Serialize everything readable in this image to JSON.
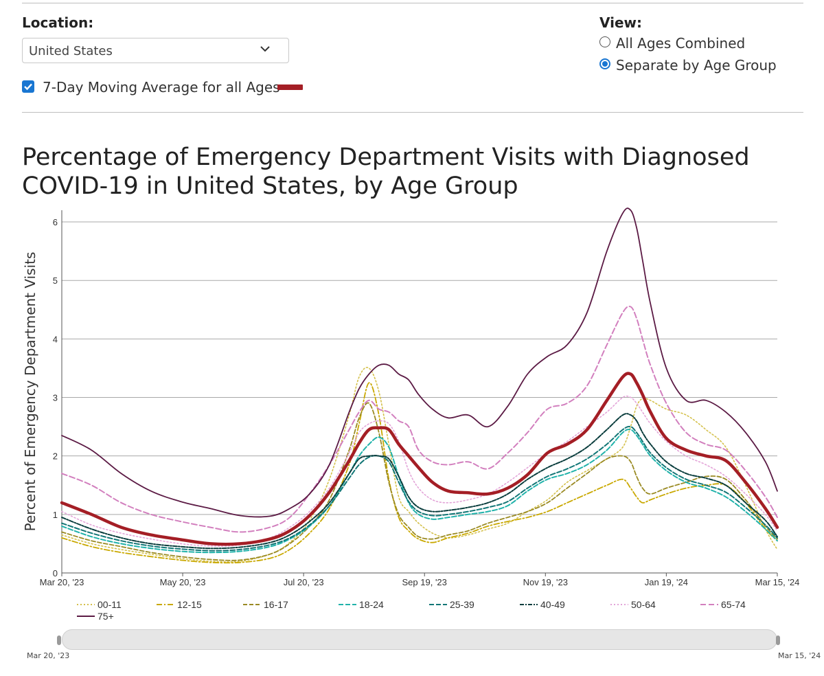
{
  "location": {
    "label": "Location:",
    "selected": "United States"
  },
  "moving_average": {
    "label": "7-Day Moving Average for all Ages",
    "checked": true,
    "color": "#a41e25"
  },
  "view": {
    "label": "View:",
    "options": [
      {
        "label": "All Ages Combined",
        "selected": false
      },
      {
        "label": "Separate by Age Group",
        "selected": true
      }
    ]
  },
  "chart_title_line1": "Percentage of Emergency Department Visits with Diagnosed",
  "chart_title_line2": "COVID-19 in United States, by Age Group",
  "chart_data": {
    "type": "line",
    "title": "Percentage of Emergency Department Visits with Diagnosed COVID-19 in United States, by Age Group",
    "xlabel": "",
    "ylabel": "Percent of Emergency Department Visits",
    "ylim": [
      0,
      6.2
    ],
    "yticks": [
      0,
      1,
      2,
      3,
      4,
      5,
      6
    ],
    "xlim_days": [
      0,
      361
    ],
    "xticks": [
      {
        "label": "Mar 20, '23",
        "day": 0
      },
      {
        "label": "May 20, '23",
        "day": 61
      },
      {
        "label": "Jul 20, '23",
        "day": 122
      },
      {
        "label": "Sep 19, '23",
        "day": 183
      },
      {
        "label": "Nov 19, '23",
        "day": 244
      },
      {
        "label": "Jan 19, '24",
        "day": 305
      },
      {
        "label": "Mar 15, '24",
        "day": 361
      }
    ],
    "x": [
      0,
      15,
      30,
      45,
      60,
      75,
      90,
      105,
      115,
      125,
      135,
      145,
      150,
      155,
      160,
      165,
      170,
      175,
      180,
      187,
      195,
      205,
      215,
      225,
      235,
      245,
      255,
      265,
      275,
      283,
      287,
      290,
      293,
      297,
      305,
      315,
      325,
      335,
      345,
      355,
      361
    ],
    "series": [
      {
        "name": "00-11",
        "color": "#d4c04a",
        "dash": "2,3",
        "width": 1.6,
        "values": [
          0.65,
          0.5,
          0.4,
          0.32,
          0.25,
          0.2,
          0.2,
          0.32,
          0.52,
          0.9,
          1.6,
          2.7,
          3.35,
          3.5,
          3.1,
          2.2,
          1.3,
          1.05,
          0.85,
          0.68,
          0.6,
          0.65,
          0.75,
          0.85,
          1.05,
          1.25,
          1.55,
          1.75,
          1.95,
          2.15,
          2.5,
          2.85,
          2.98,
          2.95,
          2.8,
          2.7,
          2.45,
          2.15,
          1.5,
          0.75,
          0.4
        ]
      },
      {
        "name": "12-15",
        "color": "#c9a800",
        "dash": "8,3,2,3",
        "width": 1.8,
        "values": [
          0.6,
          0.45,
          0.35,
          0.28,
          0.22,
          0.18,
          0.18,
          0.25,
          0.4,
          0.68,
          1.1,
          1.85,
          2.55,
          3.25,
          2.7,
          1.6,
          0.95,
          0.72,
          0.58,
          0.52,
          0.6,
          0.68,
          0.8,
          0.88,
          0.95,
          1.05,
          1.2,
          1.35,
          1.5,
          1.6,
          1.45,
          1.3,
          1.2,
          1.25,
          1.35,
          1.45,
          1.5,
          1.5,
          1.2,
          0.75,
          0.55
        ]
      },
      {
        "name": "16-17",
        "color": "#9a8a23",
        "dash": "6,3",
        "width": 1.8,
        "values": [
          0.7,
          0.55,
          0.45,
          0.35,
          0.28,
          0.23,
          0.22,
          0.32,
          0.5,
          0.8,
          1.25,
          2.1,
          2.65,
          2.9,
          2.4,
          1.55,
          1.0,
          0.78,
          0.62,
          0.58,
          0.65,
          0.72,
          0.85,
          0.95,
          1.05,
          1.2,
          1.45,
          1.7,
          1.95,
          2.0,
          1.9,
          1.65,
          1.45,
          1.35,
          1.45,
          1.55,
          1.65,
          1.6,
          1.25,
          0.8,
          0.58
        ]
      },
      {
        "name": "18-24",
        "color": "#20b2aa",
        "dash": "7,3",
        "width": 2.0,
        "values": [
          0.8,
          0.62,
          0.5,
          0.42,
          0.37,
          0.35,
          0.37,
          0.45,
          0.58,
          0.8,
          1.15,
          1.7,
          2.0,
          2.2,
          2.32,
          2.15,
          1.65,
          1.2,
          1.0,
          0.92,
          0.95,
          1.0,
          1.05,
          1.15,
          1.4,
          1.6,
          1.7,
          1.85,
          2.1,
          2.4,
          2.45,
          2.35,
          2.2,
          2.0,
          1.75,
          1.55,
          1.45,
          1.3,
          1.05,
          0.75,
          0.55
        ]
      },
      {
        "name": "25-39",
        "color": "#127676",
        "dash": "7,3",
        "width": 2.0,
        "values": [
          0.85,
          0.68,
          0.55,
          0.46,
          0.41,
          0.38,
          0.4,
          0.48,
          0.6,
          0.82,
          1.15,
          1.62,
          1.85,
          1.98,
          2.0,
          1.9,
          1.55,
          1.22,
          1.05,
          0.98,
          1.0,
          1.05,
          1.12,
          1.22,
          1.45,
          1.65,
          1.78,
          1.95,
          2.2,
          2.45,
          2.5,
          2.4,
          2.25,
          2.05,
          1.8,
          1.6,
          1.5,
          1.38,
          1.12,
          0.82,
          0.6
        ]
      },
      {
        "name": "40-49",
        "color": "#0a3d3d",
        "dash": "6,2,2,2",
        "width": 2.0,
        "values": [
          0.95,
          0.75,
          0.6,
          0.5,
          0.45,
          0.42,
          0.44,
          0.52,
          0.65,
          0.88,
          1.2,
          1.7,
          1.95,
          2.0,
          2.0,
          1.95,
          1.65,
          1.3,
          1.12,
          1.05,
          1.07,
          1.12,
          1.2,
          1.35,
          1.6,
          1.8,
          1.95,
          2.15,
          2.45,
          2.7,
          2.7,
          2.6,
          2.4,
          2.2,
          1.9,
          1.7,
          1.62,
          1.5,
          1.2,
          0.9,
          0.62
        ]
      },
      {
        "name": "50-64",
        "color": "#e3a4d8",
        "dash": "2,3",
        "width": 1.6,
        "values": [
          1.05,
          0.82,
          0.68,
          0.58,
          0.5,
          0.46,
          0.48,
          0.6,
          0.78,
          1.05,
          1.45,
          2.05,
          2.4,
          2.55,
          2.6,
          2.55,
          2.25,
          1.75,
          1.45,
          1.25,
          1.2,
          1.25,
          1.35,
          1.55,
          1.8,
          2.05,
          2.25,
          2.5,
          2.75,
          3.0,
          3.0,
          2.9,
          2.75,
          2.55,
          2.25,
          2.0,
          1.85,
          1.65,
          1.35,
          1.0,
          0.72
        ]
      },
      {
        "name": "65-74",
        "color": "#d27fbe",
        "dash": "8,4",
        "width": 2.0,
        "values": [
          1.7,
          1.5,
          1.2,
          1.0,
          0.88,
          0.78,
          0.7,
          0.78,
          0.95,
          1.35,
          1.85,
          2.45,
          2.75,
          2.95,
          2.8,
          2.75,
          2.6,
          2.5,
          2.1,
          1.9,
          1.85,
          1.9,
          1.78,
          2.05,
          2.4,
          2.8,
          2.9,
          3.2,
          3.9,
          4.45,
          4.55,
          4.35,
          4.0,
          3.55,
          2.9,
          2.4,
          2.2,
          2.1,
          1.75,
          1.3,
          0.95
        ]
      },
      {
        "name": "75+",
        "color": "#5b1a44",
        "dash": "",
        "width": 1.8,
        "values": [
          2.35,
          2.1,
          1.7,
          1.4,
          1.22,
          1.1,
          0.98,
          0.97,
          1.1,
          1.35,
          1.85,
          2.75,
          3.15,
          3.4,
          3.55,
          3.55,
          3.4,
          3.3,
          3.05,
          2.8,
          2.65,
          2.7,
          2.5,
          2.85,
          3.4,
          3.7,
          3.9,
          4.45,
          5.5,
          6.15,
          6.2,
          5.9,
          5.35,
          4.6,
          3.5,
          2.95,
          2.95,
          2.75,
          2.4,
          1.9,
          1.4
        ]
      },
      {
        "name": "7-Day Moving Average for all Ages",
        "color": "#a41e25",
        "dash": "",
        "width": 4.5,
        "legend": false,
        "values": [
          1.2,
          1.0,
          0.78,
          0.65,
          0.57,
          0.5,
          0.5,
          0.58,
          0.72,
          0.98,
          1.38,
          1.92,
          2.22,
          2.45,
          2.48,
          2.45,
          2.2,
          2.0,
          1.8,
          1.55,
          1.4,
          1.37,
          1.35,
          1.45,
          1.68,
          2.05,
          2.2,
          2.45,
          2.95,
          3.35,
          3.4,
          3.25,
          3.05,
          2.75,
          2.3,
          2.1,
          2.0,
          1.92,
          1.55,
          1.1,
          0.78
        ]
      }
    ],
    "range_selector": {
      "start": "Mar 20, '23",
      "end": "Mar 15, '24"
    }
  }
}
